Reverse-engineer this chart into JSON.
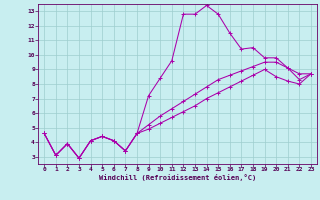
{
  "xlabel": "Windchill (Refroidissement éolien,°C)",
  "xlim": [
    -0.5,
    23.5
  ],
  "ylim": [
    2.5,
    13.5
  ],
  "yticks": [
    3,
    4,
    5,
    6,
    7,
    8,
    9,
    10,
    11,
    12,
    13
  ],
  "xticks": [
    0,
    1,
    2,
    3,
    4,
    5,
    6,
    7,
    8,
    9,
    10,
    11,
    12,
    13,
    14,
    15,
    16,
    17,
    18,
    19,
    20,
    21,
    22,
    23
  ],
  "background_color": "#c8eef0",
  "line_color": "#aa00aa",
  "grid_color": "#9ecece",
  "line1_x": [
    0,
    1,
    2,
    3,
    4,
    5,
    6,
    7,
    8,
    9,
    10,
    11,
    12,
    13,
    14,
    15,
    16,
    17,
    18,
    19,
    20,
    21,
    22,
    23
  ],
  "line1_y": [
    4.6,
    3.1,
    3.9,
    2.9,
    4.1,
    4.4,
    4.1,
    3.4,
    4.6,
    7.2,
    8.4,
    9.6,
    12.8,
    12.8,
    13.4,
    12.8,
    11.5,
    10.4,
    10.5,
    9.8,
    9.8,
    9.1,
    8.7,
    8.7
  ],
  "line2_x": [
    0,
    1,
    2,
    3,
    4,
    5,
    6,
    7,
    8,
    9,
    10,
    11,
    12,
    13,
    14,
    15,
    16,
    17,
    18,
    19,
    20,
    21,
    22,
    23
  ],
  "line2_y": [
    4.6,
    3.1,
    3.9,
    2.9,
    4.1,
    4.4,
    4.1,
    3.4,
    4.6,
    5.2,
    5.8,
    6.3,
    6.8,
    7.3,
    7.8,
    8.3,
    8.6,
    8.9,
    9.2,
    9.5,
    9.5,
    9.1,
    8.3,
    8.7
  ],
  "line3_x": [
    0,
    1,
    2,
    3,
    4,
    5,
    6,
    7,
    8,
    9,
    10,
    11,
    12,
    13,
    14,
    15,
    16,
    17,
    18,
    19,
    20,
    21,
    22,
    23
  ],
  "line3_y": [
    4.6,
    3.1,
    3.9,
    2.9,
    4.1,
    4.4,
    4.1,
    3.4,
    4.6,
    4.9,
    5.3,
    5.7,
    6.1,
    6.5,
    7.0,
    7.4,
    7.8,
    8.2,
    8.6,
    9.0,
    8.5,
    8.2,
    8.0,
    8.7
  ]
}
